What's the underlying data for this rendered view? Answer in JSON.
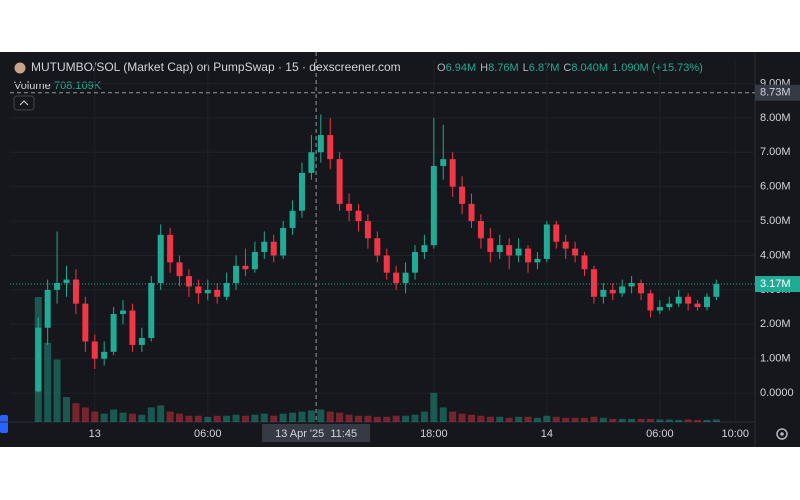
{
  "chart_data": {
    "type": "candlestick",
    "title": "MUTUMBO/SOL (Market Cap) on PumpSwap · 15 · dexscreener.com",
    "ohlc_legend": [
      {
        "key": "O",
        "value": "6.94M"
      },
      {
        "key": "H",
        "value": "8.76M"
      },
      {
        "key": "L",
        "value": "6.87M"
      },
      {
        "key": "C",
        "value": "8.040M"
      }
    ],
    "change": "1.090M (+15.73%)",
    "volume_label": "Volume",
    "volume_value": "708.109K",
    "x": [
      -3,
      -2.5,
      -2,
      -1.5,
      -1,
      -0.5,
      0,
      0.5,
      1,
      1.5,
      2,
      2.5,
      3,
      3.5,
      4,
      4.5,
      5,
      5.5,
      6,
      6.5,
      7,
      7.5,
      8,
      8.5,
      9,
      9.5,
      10,
      10.5,
      11,
      11.5,
      12,
      12.5,
      13,
      13.5,
      14,
      14.5,
      15,
      15.5,
      16,
      16.5,
      17,
      17.5,
      18,
      18.5,
      19,
      19.5,
      20,
      20.5,
      21,
      21.5,
      22,
      22.5,
      23,
      23.5,
      24,
      24.5,
      25,
      25.5,
      26,
      26.5,
      27,
      27.5,
      28,
      28.5,
      29,
      29.5,
      30,
      30.5,
      31,
      31.5,
      32,
      32.5,
      33
    ],
    "open": [
      0.05,
      1.9,
      3.0,
      3.2,
      3.3,
      2.6,
      1.5,
      1.0,
      1.2,
      2.3,
      2.4,
      1.4,
      1.6,
      3.2,
      4.6,
      3.8,
      3.4,
      3.1,
      2.9,
      3.0,
      2.8,
      3.2,
      3.7,
      3.6,
      4.1,
      4.4,
      4.0,
      4.8,
      5.3,
      6.4,
      7.0,
      7.5,
      6.8,
      5.5,
      5.3,
      5.0,
      4.5,
      4.0,
      3.5,
      3.2,
      3.5,
      4.1,
      4.3,
      6.6,
      6.8,
      6.0,
      5.5,
      5.0,
      4.5,
      4.1,
      4.3,
      4.0,
      4.2,
      3.8,
      3.9,
      4.9,
      4.4,
      4.2,
      4.0,
      3.6,
      2.8,
      3.0,
      2.9,
      3.1,
      3.2,
      2.9,
      2.4,
      2.5,
      2.6,
      2.8,
      2.6,
      2.5,
      2.8
    ],
    "high": [
      2.2,
      3.3,
      4.7,
      3.7,
      3.6,
      2.8,
      1.7,
      1.5,
      2.5,
      2.7,
      2.6,
      1.9,
      3.4,
      4.9,
      4.8,
      4.0,
      3.6,
      3.3,
      3.3,
      3.2,
      3.5,
      4.0,
      4.2,
      4.4,
      4.7,
      4.6,
      5.0,
      5.6,
      6.7,
      7.5,
      8.1,
      8.0,
      7.0,
      5.8,
      5.5,
      5.2,
      4.7,
      4.2,
      3.7,
      3.8,
      4.3,
      4.6,
      8.0,
      7.8,
      7.0,
      6.3,
      5.8,
      5.2,
      4.8,
      4.6,
      4.5,
      4.5,
      4.3,
      4.1,
      5.0,
      5.0,
      4.6,
      4.4,
      4.1,
      3.7,
      3.2,
      3.2,
      3.3,
      3.4,
      3.3,
      3.0,
      2.7,
      2.8,
      3.0,
      2.9,
      2.7,
      2.9,
      3.3
    ],
    "low": [
      0.02,
      1.4,
      2.6,
      2.8,
      2.3,
      1.2,
      0.7,
      0.8,
      1.1,
      2.0,
      1.2,
      1.2,
      1.5,
      3.0,
      3.5,
      3.1,
      2.8,
      2.6,
      2.7,
      2.6,
      2.7,
      3.0,
      3.4,
      3.5,
      3.9,
      3.8,
      3.9,
      4.6,
      5.1,
      6.2,
      6.7,
      6.5,
      5.3,
      5.0,
      4.7,
      4.2,
      3.8,
      3.3,
      3.0,
      2.9,
      3.3,
      3.9,
      4.2,
      6.2,
      5.7,
      5.2,
      4.8,
      4.2,
      3.8,
      3.9,
      3.6,
      3.8,
      3.5,
      3.6,
      3.8,
      4.2,
      3.9,
      3.8,
      3.4,
      2.6,
      2.6,
      2.7,
      2.8,
      2.9,
      2.7,
      2.2,
      2.3,
      2.4,
      2.5,
      2.4,
      2.4,
      2.4,
      2.7
    ],
    "close": [
      1.9,
      3.0,
      3.2,
      3.3,
      2.6,
      1.5,
      1.0,
      1.2,
      2.3,
      2.4,
      1.4,
      1.6,
      3.2,
      4.6,
      3.8,
      3.4,
      3.1,
      2.9,
      3.0,
      2.8,
      3.2,
      3.7,
      3.6,
      4.1,
      4.4,
      4.0,
      4.8,
      5.3,
      6.4,
      7.0,
      7.5,
      6.8,
      5.5,
      5.3,
      5.0,
      4.5,
      4.0,
      3.5,
      3.2,
      3.5,
      4.1,
      4.3,
      6.6,
      6.8,
      6.0,
      5.5,
      5.0,
      4.5,
      4.1,
      4.3,
      4.0,
      4.2,
      3.8,
      3.9,
      4.9,
      4.4,
      4.2,
      4.0,
      3.6,
      2.8,
      3.0,
      2.9,
      3.1,
      3.2,
      2.9,
      2.4,
      2.5,
      2.6,
      2.8,
      2.6,
      2.5,
      2.8,
      3.17
    ],
    "volume": [
      6000,
      3800,
      3000,
      1200,
      900,
      700,
      500,
      400,
      600,
      450,
      400,
      350,
      700,
      800,
      500,
      400,
      300,
      300,
      250,
      300,
      300,
      350,
      300,
      350,
      400,
      300,
      400,
      450,
      500,
      550,
      600,
      500,
      450,
      350,
      300,
      300,
      250,
      250,
      300,
      300,
      350,
      500,
      1400,
      700,
      500,
      400,
      350,
      300,
      250,
      250,
      200,
      250,
      250,
      200,
      300,
      250,
      200,
      200,
      200,
      250,
      200,
      150,
      150,
      150,
      150,
      150,
      120,
      120,
      100,
      120,
      100,
      100,
      120
    ],
    "up_color": "#22ab94",
    "down_color": "#f23645",
    "ylim": [
      -0.84,
      9.1
    ],
    "yticks": [
      {
        "value": 0,
        "label": "0.0000"
      },
      {
        "value": 1,
        "label": "1.00M"
      },
      {
        "value": 2,
        "label": "2.00M"
      },
      {
        "value": 3,
        "label": "3.00M"
      },
      {
        "value": 4,
        "label": "4.00M"
      },
      {
        "value": 5,
        "label": "5.00M"
      },
      {
        "value": 6,
        "label": "6.00M"
      },
      {
        "value": 7,
        "label": "7.00M"
      },
      {
        "value": 8,
        "label": "8.00M"
      },
      {
        "value": 9,
        "label": "9.00M"
      }
    ],
    "xlim": [
      -4.5,
      35.05
    ],
    "xticks": [
      {
        "value": 0,
        "label": "13"
      },
      {
        "value": 6,
        "label": "06:00"
      },
      {
        "value": 18,
        "label": "18:00"
      },
      {
        "value": 24,
        "label": "14"
      },
      {
        "value": 30,
        "label": "06:00"
      },
      {
        "value": 34,
        "label": "10:00"
      }
    ],
    "crosshair": {
      "x": 11.75,
      "x_label": "13 Apr '25  11:45",
      "y": 8.73,
      "y_label": "8.73M"
    },
    "last_price_label": "3.17M",
    "grid": true
  }
}
